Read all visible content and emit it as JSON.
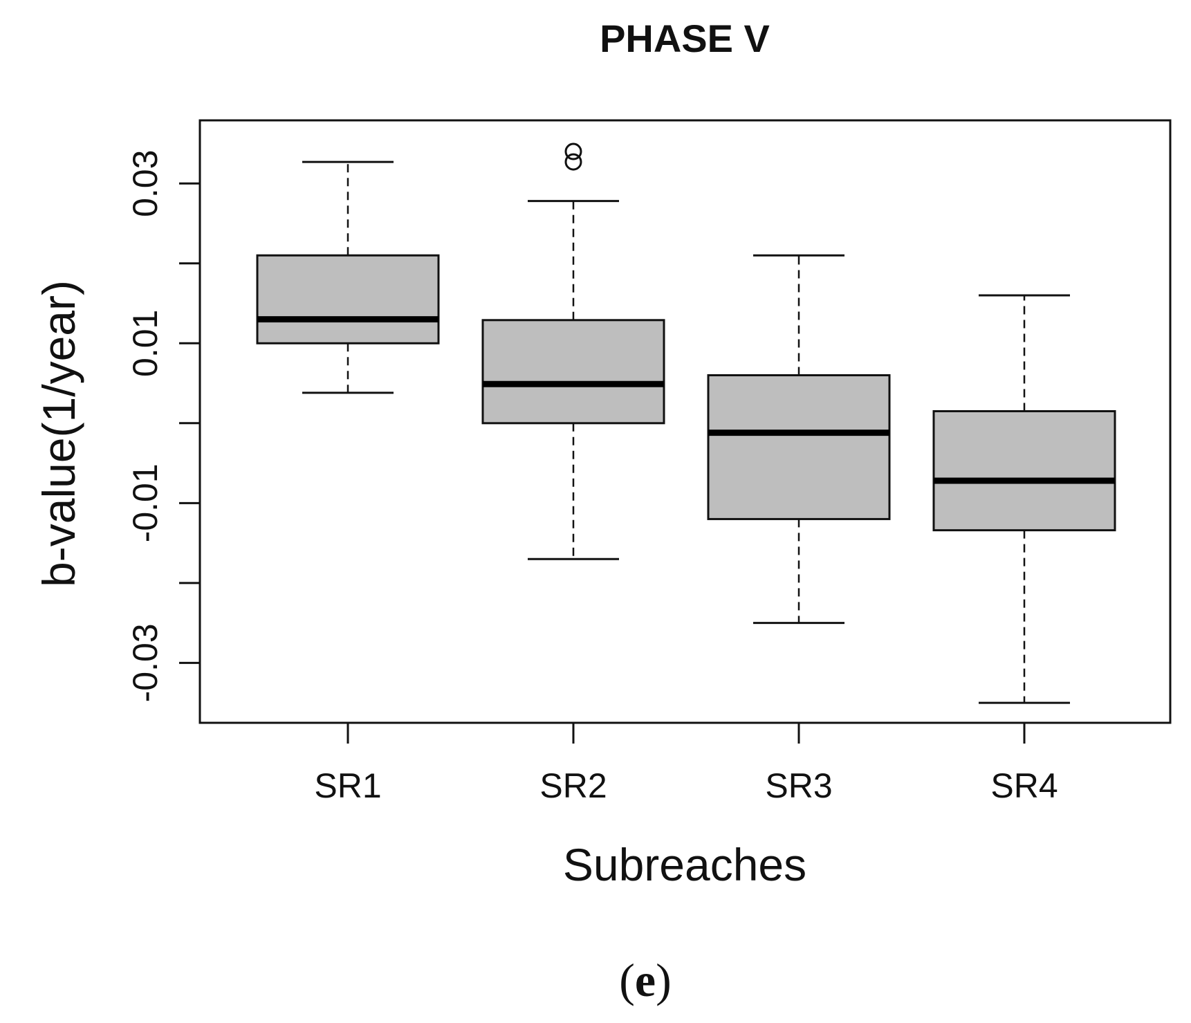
{
  "chart_data": {
    "type": "boxplot",
    "title": "PHASE V",
    "xlabel": "Subreaches",
    "ylabel": "b-value(1/year)",
    "categories": [
      "SR1",
      "SR2",
      "SR3",
      "SR4"
    ],
    "ylim": [
      -0.0375,
      0.0379
    ],
    "yticks": [
      -0.03,
      -0.02,
      -0.01,
      0.0,
      0.01,
      0.02,
      0.03
    ],
    "ytick_labels": [
      "-0.03",
      "",
      "-0.01",
      "",
      "0.01",
      "",
      "0.03"
    ],
    "boxes": [
      {
        "label": "SR1",
        "whisker_low": 0.0038,
        "q1": 0.01,
        "median": 0.013,
        "q3": 0.021,
        "whisker_high": 0.0327,
        "outliers": []
      },
      {
        "label": "SR2",
        "whisker_low": -0.017,
        "q1": 0.0,
        "median": 0.0049,
        "q3": 0.0129,
        "whisker_high": 0.0278,
        "outliers": [
          0.034,
          0.0327
        ]
      },
      {
        "label": "SR3",
        "whisker_low": -0.025,
        "q1": -0.012,
        "median": -0.0012,
        "q3": 0.006,
        "whisker_high": 0.021,
        "outliers": []
      },
      {
        "label": "SR4",
        "whisker_low": -0.035,
        "q1": -0.0134,
        "median": -0.0072,
        "q3": 0.0015,
        "whisker_high": 0.016,
        "outliers": []
      }
    ],
    "box_fill": "#bebebe",
    "grid": false,
    "legend": "none"
  },
  "panel_label": {
    "open": "(",
    "letter": "e",
    "close": ")"
  }
}
